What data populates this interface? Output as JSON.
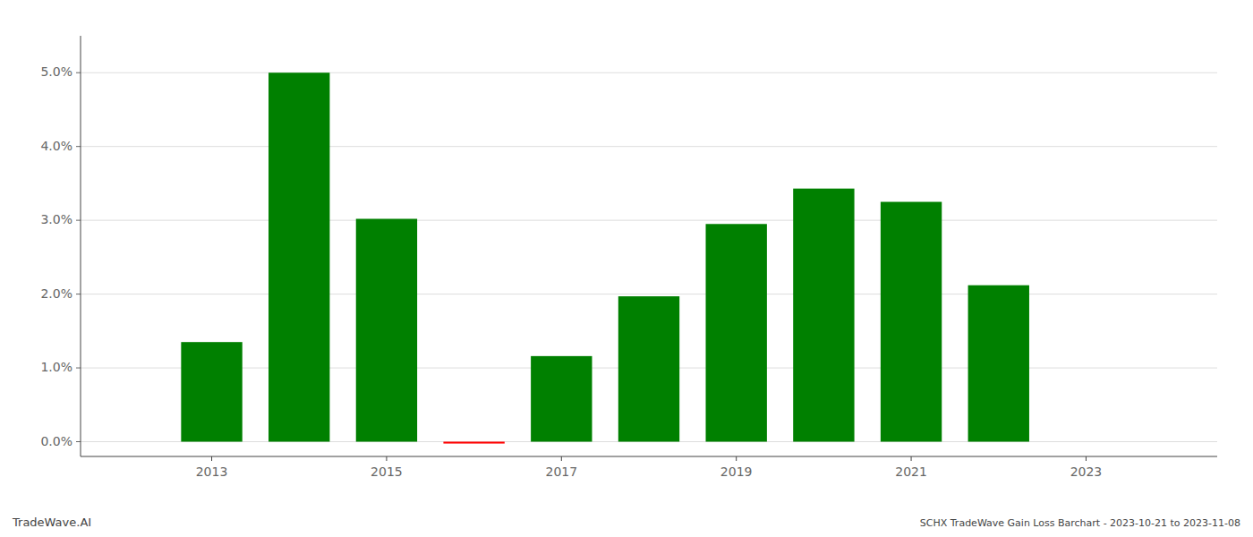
{
  "chart_data": {
    "type": "bar",
    "x": [
      2013,
      2014,
      2015,
      2016,
      2017,
      2018,
      2019,
      2020,
      2021,
      2022
    ],
    "values": [
      0.0135,
      0.05,
      0.0302,
      -0.00025,
      0.0116,
      0.0197,
      0.0295,
      0.0343,
      0.0325,
      0.0212
    ],
    "colors": [
      "#008000",
      "#008000",
      "#008000",
      "#ff0000",
      "#008000",
      "#008000",
      "#008000",
      "#008000",
      "#008000",
      "#008000"
    ],
    "xlim": [
      2011.5,
      2024.5
    ],
    "xticks": [
      2013,
      2015,
      2017,
      2019,
      2021,
      2023
    ],
    "ylim": [
      -0.002,
      0.055
    ],
    "yticks": [
      {
        "value": 0,
        "label": "0.0%"
      },
      {
        "value": 0.01,
        "label": "1.0%"
      },
      {
        "value": 0.02,
        "label": "2.0%"
      },
      {
        "value": 0.03,
        "label": "3.0%"
      },
      {
        "value": 0.04,
        "label": "4.0%"
      },
      {
        "value": 0.05,
        "label": "5.0%"
      }
    ],
    "grid": true,
    "annotations": [
      "TradeWave.AI",
      "SCHX TradeWave Gain Loss Barchart - 2023-10-21 to 2023-11-08"
    ]
  }
}
